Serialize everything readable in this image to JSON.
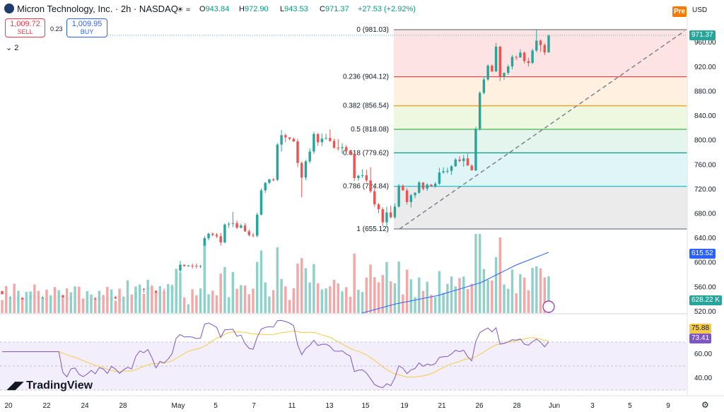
{
  "header": {
    "symbol_title": "Micron Technology, Inc. · 2h · NASDAQ",
    "ohlc": [
      {
        "k": "O",
        "v": "943.84"
      },
      {
        "k": "H",
        "v": "972.90"
      },
      {
        "k": "L",
        "v": "943.53"
      },
      {
        "k": "C",
        "v": "971.37"
      }
    ],
    "change": "+27.53 (+2.92%)",
    "pre_label": "Pre",
    "currency": "USD",
    "session_icons": "☀ ≈"
  },
  "trade": {
    "sell_price": "1,009.72",
    "sell_label": "SELL",
    "spread": "0.23",
    "buy_price": "1,009.95",
    "buy_label": "BUY",
    "indicator_count": "2"
  },
  "branding": {
    "logo_text": "TradingView"
  },
  "price_tags": {
    "last_price": "971.37",
    "volume_ma": "615.52",
    "volume": "628.22 K",
    "rsi_ma": "75.88",
    "rsi": "73.41"
  },
  "colors": {
    "up": "#26a69a",
    "down": "#ef5350",
    "vol_up": "#8fd1c8",
    "vol_down": "#f5a6a6",
    "rsi_line": "#7e57c2",
    "rsi_ma": "#f7c948",
    "vol_ma": "#2962ff",
    "fib_red": "#f23645",
    "fib_orange": "#ff9800",
    "fib_green": "#4caf50",
    "fib_teal": "#089981",
    "fib_cyan": "#00bcd4",
    "fib_grey": "#787b86"
  },
  "chart_data": {
    "type": "candlestick",
    "x_tick_labels": [
      "20",
      "22",
      "24",
      "28",
      "May",
      "5",
      "7",
      "11",
      "13",
      "15",
      "19",
      "21",
      "26",
      "28",
      "Jun",
      "3",
      "5",
      "9"
    ],
    "price_axis": {
      "range": [
        500,
        1000
      ],
      "ticks": [
        520,
        560,
        600,
        640,
        680,
        720,
        760,
        800,
        840,
        880,
        920,
        960
      ]
    },
    "fibonacci": [
      {
        "label": "0 (981.03)",
        "level": 981.03,
        "color": "#787b86",
        "fill": "#fde3e3"
      },
      {
        "label": "0.236 (904.12)",
        "level": 904.12,
        "color": "#f23645",
        "fill": "#fff0e0"
      },
      {
        "label": "0.382 (856.54)",
        "level": 856.54,
        "color": "#ff9800",
        "fill": "#eef7e0"
      },
      {
        "label": "0.5 (818.08)",
        "level": 818.08,
        "color": "#4caf50",
        "fill": "#e3f5ec"
      },
      {
        "label": "0.618 (779.62)",
        "level": 779.62,
        "color": "#089981",
        "fill": "#e0f5f7"
      },
      {
        "label": "0.786 (724.84)",
        "level": 724.84,
        "color": "#00bcd4",
        "fill": "#ebebeb"
      },
      {
        "label": "1 (655.12)",
        "level": 655.12,
        "color": "#787b86",
        "fill": null
      }
    ],
    "trendline": {
      "from": 655.12,
      "to": 981.03,
      "style": "dashed"
    },
    "candles": [
      [
        553.4,
        554.1,
        547.8,
        548.6
      ],
      [
        548.6,
        550.2,
        540.3,
        541.7
      ],
      [
        541.7,
        545.0,
        539.9,
        543.2
      ],
      [
        543.2,
        545.6,
        536.8,
        538.1
      ],
      [
        538.1,
        543.5,
        535.4,
        542.6
      ],
      [
        542.6,
        543.2,
        537.0,
        538.4
      ],
      [
        538.4,
        541.9,
        537.7,
        540.0
      ],
      [
        540.0,
        549.6,
        539.6,
        546.6
      ],
      [
        546.6,
        550.2,
        542.6,
        544.4
      ],
      [
        544.4,
        546.9,
        539.3,
        540.6
      ],
      [
        540.6,
        545.5,
        539.0,
        542.9
      ],
      [
        542.9,
        544.2,
        538.7,
        539.5
      ],
      [
        539.5,
        544.8,
        538.8,
        543.7
      ],
      [
        543.7,
        545.4,
        540.7,
        541.8
      ],
      [
        541.8,
        548.5,
        541.1,
        546.8
      ],
      [
        546.8,
        547.5,
        540.7,
        542.8
      ],
      [
        542.8,
        543.1,
        537.1,
        538.4
      ],
      [
        538.4,
        546.1,
        538.1,
        544.7
      ],
      [
        544.7,
        547.3,
        542.6,
        545.5
      ],
      [
        545.5,
        548.2,
        538.4,
        539.5
      ],
      [
        539.5,
        541.6,
        536.5,
        537.1
      ],
      [
        537.1,
        539.6,
        536.7,
        538.9
      ],
      [
        538.9,
        542.1,
        536.6,
        541.7
      ],
      [
        541.7,
        543.4,
        536.6,
        538.6
      ],
      [
        538.6,
        543.8,
        538.2,
        543.3
      ],
      [
        543.3,
        547.4,
        540.1,
        542.2
      ],
      [
        542.2,
        543.6,
        537.6,
        538.3
      ],
      [
        538.3,
        544.2,
        534.9,
        543.7
      ],
      [
        543.7,
        545.5,
        540.4,
        541.4
      ],
      [
        541.4,
        543.7,
        536.8,
        537.6
      ],
      [
        537.6,
        541.3,
        535.7,
        540.3
      ],
      [
        540.3,
        547.6,
        536.6,
        542.1
      ],
      [
        542.1,
        544.2,
        539.8,
        540.9
      ],
      [
        540.9,
        555.8,
        539.2,
        551.3
      ],
      [
        551.3,
        558.5,
        548.5,
        557.2
      ],
      [
        557.2,
        558.5,
        550.9,
        556.0
      ],
      [
        556.0,
        563.5,
        552.3,
        559.5
      ],
      [
        559.5,
        563.1,
        551.8,
        553.8
      ],
      [
        553.8,
        554.9,
        544.0,
        545.0
      ],
      [
        545.0,
        552.4,
        544.5,
        551.5
      ],
      [
        551.5,
        557.6,
        548.5,
        549.9
      ],
      [
        549.9,
        555.6,
        548.9,
        554.0
      ],
      [
        554.0,
        563.9,
        552.6,
        560.3
      ],
      [
        560.3,
        589.7,
        558.1,
        587.1
      ],
      [
        587.1,
        602.8,
        582.6,
        596.7
      ],
      [
        596.7,
        596.9,
        593.4,
        594.5
      ],
      [
        594.5,
        596.4,
        593.5,
        595.2
      ],
      [
        595.2,
        598.3,
        590.6,
        594.9
      ],
      [
        594.9,
        598.6,
        590.6,
        593.8
      ],
      [
        593.8,
        596.3,
        591.1,
        594.6
      ],
      [
        594.6,
        643.7,
        592.6,
        640.1
      ],
      [
        640.1,
        649.1,
        636.6,
        647.4
      ],
      [
        647.4,
        649.2,
        643.0,
        645.4
      ],
      [
        645.4,
        648.3,
        640.4,
        643.2
      ],
      [
        643.2,
        648.3,
        628.3,
        633.3
      ],
      [
        633.3,
        664.3,
        631.8,
        662.4
      ],
      [
        662.4,
        666.2,
        657.0,
        663.7
      ],
      [
        663.7,
        683.3,
        658.1,
        664.7
      ],
      [
        664.7,
        669.2,
        654.9,
        657.1
      ],
      [
        657.1,
        663.6,
        656.0,
        660.8
      ],
      [
        660.8,
        664.6,
        650.6,
        651.2
      ],
      [
        651.2,
        654.2,
        642.9,
        645.2
      ],
      [
        645.2,
        648.6,
        641.7,
        644.1
      ],
      [
        644.1,
        681.8,
        641.4,
        678.5
      ],
      [
        678.5,
        721.5,
        677.4,
        718.3
      ],
      [
        718.3,
        731.7,
        713.8,
        730.6
      ],
      [
        730.6,
        737.6,
        728.2,
        736.1
      ],
      [
        736.1,
        738.4,
        733.1,
        735.4
      ],
      [
        735.4,
        795.5,
        733.4,
        793.1
      ],
      [
        793.1,
        817.2,
        781.7,
        808.5
      ],
      [
        808.5,
        810.9,
        796.8,
        804.9
      ],
      [
        804.9,
        805.2,
        800.2,
        802.5
      ],
      [
        802.5,
        804.6,
        797.5,
        798.3
      ],
      [
        798.3,
        802.5,
        756.3,
        763.0
      ],
      [
        763.0,
        765.4,
        707.1,
        739.2
      ],
      [
        739.2,
        768.2,
        734.9,
        765.8
      ],
      [
        765.8,
        787.2,
        762.3,
        781.8
      ],
      [
        781.8,
        813.8,
        778.0,
        810.4
      ],
      [
        810.4,
        812.1,
        791.4,
        796.9
      ],
      [
        796.9,
        811.3,
        790.6,
        802.8
      ],
      [
        802.8,
        810.8,
        801.0,
        803.9
      ],
      [
        803.9,
        817.9,
        797.5,
        799.0
      ],
      [
        799.0,
        802.6,
        786.5,
        788.0
      ],
      [
        788.0,
        802.3,
        783.1,
        787.4
      ],
      [
        787.4,
        795.3,
        778.0,
        788.9
      ],
      [
        788.9,
        792.3,
        782.1,
        782.4
      ],
      [
        782.4,
        783.0,
        776.8,
        778.1
      ],
      [
        778.1,
        780.6,
        733.7,
        738.4
      ],
      [
        738.4,
        743.9,
        734.1,
        742.1
      ],
      [
        742.1,
        752.8,
        738.3,
        742.9
      ],
      [
        742.9,
        751.9,
        731.9,
        734.5
      ],
      [
        734.5,
        756.1,
        714.0,
        716.8
      ],
      [
        716.8,
        725.2,
        691.2,
        695.4
      ],
      [
        695.4,
        697.5,
        680.9,
        687.4
      ],
      [
        687.4,
        690.7,
        659.5,
        666.0
      ],
      [
        666.0,
        691.5,
        658.1,
        682.1
      ],
      [
        682.1,
        692.9,
        672.5,
        674.2
      ],
      [
        674.2,
        696.7,
        671.8,
        691.7
      ],
      [
        691.7,
        728.7,
        690.4,
        725.9
      ],
      [
        725.9,
        727.9,
        717.9,
        718.1
      ],
      [
        718.1,
        721.8,
        695.2,
        699.2
      ],
      [
        699.2,
        712.8,
        690.4,
        710.2
      ],
      [
        710.2,
        715.3,
        705.5,
        714.3
      ],
      [
        714.3,
        733.3,
        712.4,
        731.2
      ],
      [
        731.2,
        731.6,
        718.3,
        721.0
      ],
      [
        721.0,
        729.7,
        717.4,
        727.7
      ],
      [
        727.7,
        728.6,
        723.9,
        724.8
      ],
      [
        724.8,
        732.1,
        722.6,
        729.2
      ],
      [
        729.2,
        755.0,
        727.2,
        747.5
      ],
      [
        747.5,
        756.0,
        745.4,
        749.6
      ],
      [
        749.6,
        755.2,
        745.7,
        750.0
      ],
      [
        750.0,
        759.3,
        743.6,
        757.7
      ],
      [
        757.7,
        771.0,
        756.6,
        768.7
      ],
      [
        768.7,
        774.4,
        764.1,
        766.2
      ],
      [
        766.2,
        776.2,
        756.8,
        770.5
      ],
      [
        770.5,
        778.2,
        762.8,
        758.7
      ],
      [
        758.7,
        760.7,
        752.3,
        750.9
      ],
      [
        750.9,
        822.4,
        749.8,
        819.0
      ],
      [
        819.0,
        880.4,
        816.1,
        877.7
      ],
      [
        877.7,
        904.4,
        875.2,
        899.6
      ],
      [
        899.6,
        924.5,
        897.4,
        922.2
      ],
      [
        922.2,
        924.4,
        911.6,
        913.0
      ],
      [
        913.0,
        959.3,
        911.7,
        953.2
      ],
      [
        953.2,
        954.5,
        897.0,
        904.8
      ],
      [
        904.8,
        910.9,
        898.6,
        910.3
      ],
      [
        910.3,
        923.8,
        907.2,
        920.9
      ],
      [
        920.9,
        939.7,
        915.8,
        936.5
      ],
      [
        936.5,
        938.5,
        931.7,
        935.6
      ],
      [
        935.6,
        948.8,
        934.9,
        943.6
      ],
      [
        943.6,
        945.3,
        925.8,
        929.7
      ],
      [
        929.7,
        935.1,
        920.9,
        926.7
      ],
      [
        926.7,
        949.6,
        924.7,
        946.9
      ],
      [
        946.9,
        981.0,
        944.3,
        963.1
      ],
      [
        963.1,
        965.0,
        945.1,
        955.8
      ],
      [
        955.8,
        958.6,
        939.7,
        943.8
      ],
      [
        943.84,
        972.9,
        943.53,
        971.37
      ]
    ],
    "volume_ma": [
      null,
      null,
      null,
      null,
      null,
      null,
      null,
      null,
      null,
      null,
      null,
      null,
      null,
      null,
      null,
      null,
      null,
      null,
      null,
      null,
      null,
      null,
      null,
      null,
      null,
      null,
      null,
      null,
      null,
      null,
      null,
      null,
      null,
      null,
      null,
      null,
      null,
      null,
      null,
      null,
      null,
      null,
      null,
      null,
      null,
      null,
      null,
      null,
      null,
      null,
      null,
      null,
      null,
      null,
      null,
      null,
      null,
      null,
      null,
      null,
      null,
      null,
      null,
      null,
      null,
      null,
      null,
      null,
      null,
      null,
      null,
      null,
      null,
      null,
      null,
      null,
      null,
      null,
      null,
      null,
      null,
      null,
      null,
      null,
      null,
      null,
      null,
      null,
      null,
      null,
      null,
      null,
      null,
      null,
      null,
      null,
      null,
      null,
      null,
      null,
      null,
      null,
      null,
      null,
      null,
      null,
      null,
      null,
      null,
      null,
      null,
      null,
      null,
      null,
      null,
      null,
      null,
      null,
      null,
      null,
      null,
      null,
      null,
      null,
      null,
      null,
      null,
      null,
      null,
      null,
      null,
      null,
      null,
      null,
      null,
      null
    ]
  }
}
